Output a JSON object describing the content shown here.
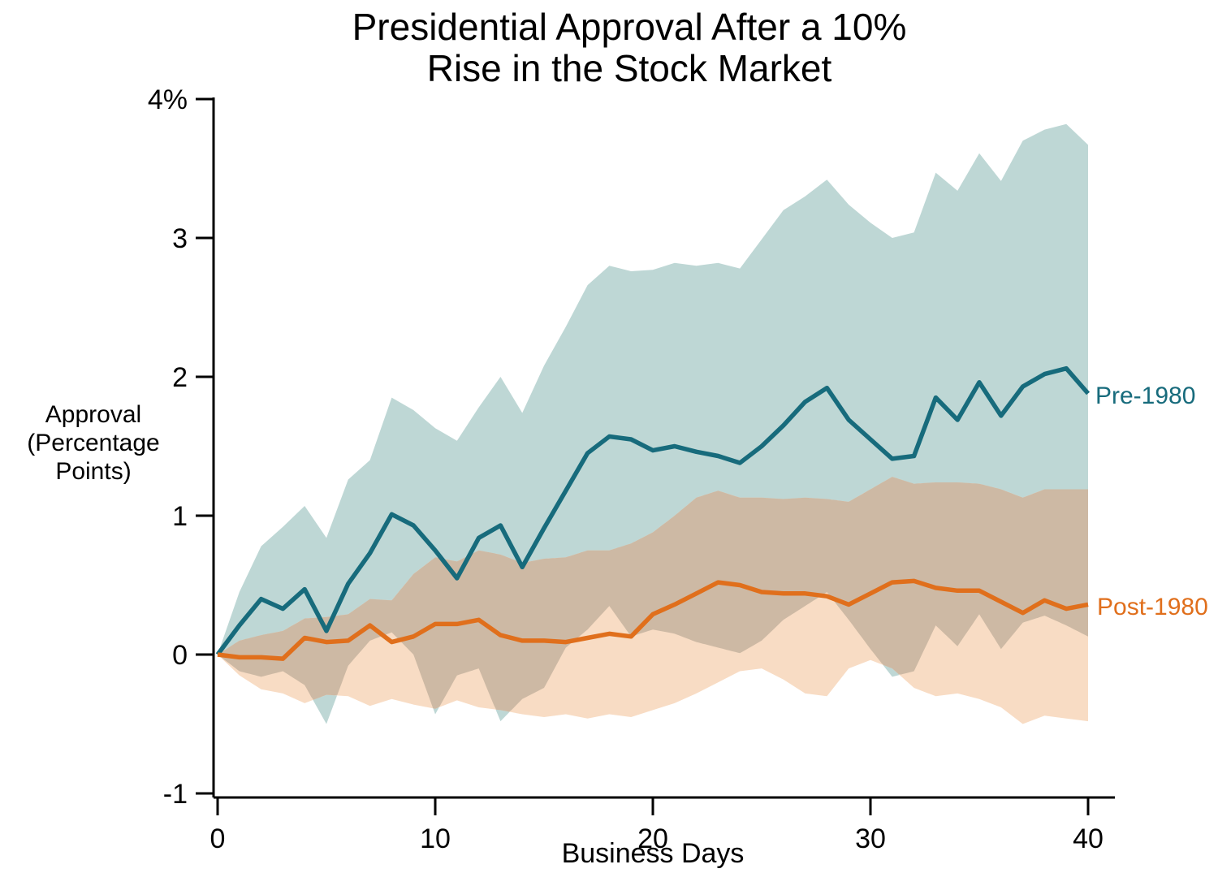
{
  "chart_data": {
    "type": "line",
    "title_line1": "Presidential Approval After a 10%",
    "title_line2": "Rise in the Stock Market",
    "ylabel_line1": "Approval",
    "ylabel_line2": "(Percentage",
    "ylabel_line3": "Points)",
    "xlabel": "Business Days",
    "xlim": [
      0,
      40
    ],
    "ylim": [
      -1,
      4
    ],
    "grid": false,
    "x_ticks": [
      {
        "v": 0,
        "label": "0"
      },
      {
        "v": 10,
        "label": "10"
      },
      {
        "v": 20,
        "label": "20"
      },
      {
        "v": 30,
        "label": "30"
      },
      {
        "v": 40,
        "label": "40"
      }
    ],
    "y_ticks": [
      {
        "v": 4,
        "label": "4%"
      },
      {
        "v": 3,
        "label": "3"
      },
      {
        "v": 2,
        "label": "2"
      },
      {
        "v": 1,
        "label": "1"
      },
      {
        "v": 0,
        "label": "0"
      },
      {
        "v": -1,
        "label": "-1"
      }
    ],
    "colors": {
      "pre_line": "#176b7c",
      "pre_band": "#bed7d5",
      "post_line": "#e06f1c",
      "post_band": "#f8dcc4",
      "overlap_band": "#cdb9a4",
      "axis": "#000000"
    },
    "x": [
      0,
      1,
      2,
      3,
      4,
      5,
      6,
      7,
      8,
      9,
      10,
      11,
      12,
      13,
      14,
      15,
      16,
      17,
      18,
      19,
      20,
      21,
      22,
      23,
      24,
      25,
      26,
      27,
      28,
      29,
      30,
      31,
      32,
      33,
      34,
      35,
      36,
      37,
      38,
      39,
      40
    ],
    "series": [
      {
        "name": "Pre-1980",
        "values": [
          0,
          0.21,
          0.4,
          0.33,
          0.47,
          0.17,
          0.51,
          0.73,
          1.01,
          0.93,
          0.75,
          0.55,
          0.84,
          0.93,
          0.63,
          0.91,
          1.18,
          1.45,
          1.57,
          1.55,
          1.47,
          1.5,
          1.46,
          1.43,
          1.38,
          1.5,
          1.65,
          1.82,
          1.92,
          1.69,
          1.55,
          1.41,
          1.43,
          1.85,
          1.69,
          1.96,
          1.72,
          1.93,
          2.02,
          2.06,
          1.88
        ],
        "ci_upper": [
          0,
          0.45,
          0.78,
          0.92,
          1.07,
          0.84,
          1.26,
          1.4,
          1.85,
          1.76,
          1.63,
          1.54,
          1.78,
          2.0,
          1.74,
          2.08,
          2.36,
          2.66,
          2.8,
          2.76,
          2.77,
          2.82,
          2.8,
          2.82,
          2.78,
          2.99,
          3.2,
          3.3,
          3.42,
          3.24,
          3.11,
          3.0,
          3.04,
          3.47,
          3.34,
          3.61,
          3.41,
          3.7,
          3.78,
          3.82,
          3.67
        ],
        "ci_lower": [
          0,
          -0.12,
          -0.16,
          -0.12,
          -0.22,
          -0.5,
          -0.08,
          0.1,
          0.16,
          0.0,
          -0.43,
          -0.15,
          -0.1,
          -0.48,
          -0.32,
          -0.24,
          0.05,
          0.18,
          0.35,
          0.13,
          0.18,
          0.15,
          0.09,
          0.05,
          0.01,
          0.1,
          0.25,
          0.35,
          0.45,
          0.25,
          0.04,
          -0.16,
          -0.12,
          0.21,
          0.06,
          0.29,
          0.04,
          0.23,
          0.28,
          0.21,
          0.13
        ]
      },
      {
        "name": "Post-1980",
        "values": [
          0,
          -0.02,
          -0.02,
          -0.03,
          0.12,
          0.09,
          0.1,
          0.21,
          0.09,
          0.13,
          0.22,
          0.22,
          0.25,
          0.14,
          0.1,
          0.1,
          0.09,
          0.12,
          0.15,
          0.13,
          0.29,
          0.36,
          0.44,
          0.52,
          0.5,
          0.45,
          0.44,
          0.44,
          0.42,
          0.36,
          0.44,
          0.52,
          0.53,
          0.48,
          0.46,
          0.46,
          0.38,
          0.3,
          0.39,
          0.33,
          0.36
        ],
        "ci_upper": [
          0,
          0.1,
          0.14,
          0.17,
          0.26,
          0.27,
          0.29,
          0.4,
          0.39,
          0.58,
          0.7,
          0.67,
          0.75,
          0.72,
          0.66,
          0.69,
          0.7,
          0.75,
          0.75,
          0.8,
          0.88,
          1.0,
          1.13,
          1.18,
          1.13,
          1.13,
          1.12,
          1.13,
          1.12,
          1.1,
          1.19,
          1.28,
          1.23,
          1.24,
          1.24,
          1.23,
          1.19,
          1.13,
          1.19,
          1.19,
          1.19
        ],
        "ci_lower": [
          0,
          -0.15,
          -0.25,
          -0.28,
          -0.35,
          -0.29,
          -0.3,
          -0.37,
          -0.32,
          -0.36,
          -0.39,
          -0.33,
          -0.38,
          -0.4,
          -0.43,
          -0.45,
          -0.43,
          -0.46,
          -0.43,
          -0.45,
          -0.4,
          -0.35,
          -0.28,
          -0.2,
          -0.12,
          -0.1,
          -0.18,
          -0.28,
          -0.3,
          -0.1,
          -0.04,
          -0.1,
          -0.24,
          -0.3,
          -0.28,
          -0.32,
          -0.38,
          -0.5,
          -0.44,
          -0.46,
          -0.48
        ]
      }
    ],
    "series_labels": {
      "pre": "Pre-1980",
      "post": "Post-1980"
    }
  }
}
